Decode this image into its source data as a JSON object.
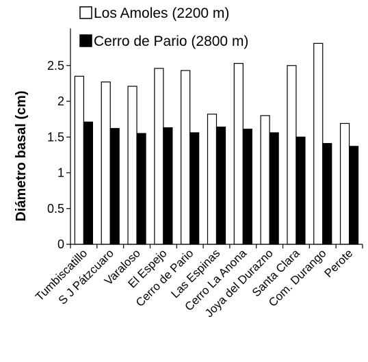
{
  "chart_data": {
    "type": "bar",
    "title": "",
    "xlabel": "",
    "ylabel": "Diámetro basal (cm)",
    "ylim": [
      0,
      3
    ],
    "yticks": [
      0,
      0.5,
      1,
      1.5,
      2,
      2.5
    ],
    "yticklabels": [
      "0",
      "0.5",
      "1",
      "1.5",
      "2",
      "2.5"
    ],
    "categories": [
      "Tumbiscatillo",
      "S J Pátzcuaro",
      "Varaloso",
      "El Espejo",
      "Cerro de Pario",
      "Las Espinas",
      "Cerro La Anona",
      "Joya del Durazno",
      "Santa Clara",
      "Com. Durango",
      "Perote"
    ],
    "series": [
      {
        "name": "Los Amoles (2200 m)",
        "fill": "#ffffff",
        "values": [
          2.35,
          2.27,
          2.21,
          2.46,
          2.43,
          1.82,
          2.53,
          1.8,
          2.5,
          2.81,
          1.69
        ]
      },
      {
        "name": "Cerro de Pario (2800 m)",
        "fill": "#000000",
        "values": [
          1.71,
          1.62,
          1.55,
          1.63,
          1.56,
          1.64,
          1.61,
          1.56,
          1.5,
          1.41,
          1.37
        ]
      }
    ],
    "legend": "top",
    "grid": false
  }
}
